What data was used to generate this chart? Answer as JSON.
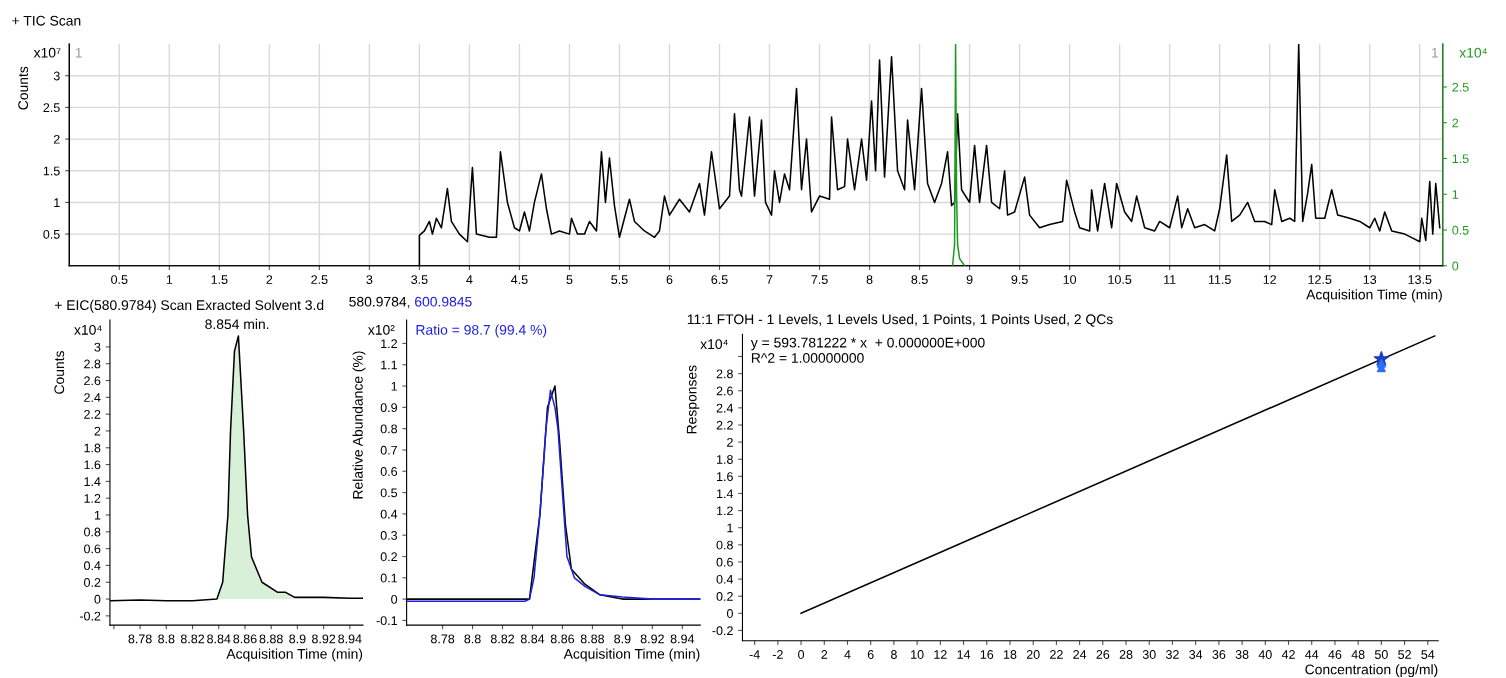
{
  "chart_data": [
    {
      "type": "line",
      "title": "+ TIC Scan",
      "xlabel": "Acquisition Time (min)",
      "ylabel": "Counts",
      "annotations": [
        "x10⁷",
        "x10⁴",
        "1",
        "1"
      ],
      "xlim": [
        0,
        13.73
      ],
      "xticks": [
        0.5,
        1,
        1.5,
        2,
        2.5,
        3,
        3.5,
        4,
        4.5,
        5,
        5.5,
        6,
        6.5,
        7,
        7.5,
        8,
        8.5,
        9,
        9.5,
        10,
        10.5,
        11,
        11.5,
        12,
        12.5,
        13,
        13.5
      ],
      "ylim": [
        0,
        3.5
      ],
      "yticks": [
        0.5,
        1,
        1.5,
        2,
        2.5,
        3
      ],
      "y2lim": [
        0,
        3.1
      ],
      "y2ticks": [
        0,
        0.5,
        1,
        1.5,
        2,
        2.5
      ],
      "grid": true,
      "series": [
        {
          "color": "#000000",
          "x": [
            3.5,
            3.5,
            3.55,
            3.6,
            3.63,
            3.67,
            3.72,
            3.78,
            3.82,
            3.9,
            3.98,
            4.03,
            4.07,
            4.2,
            4.27,
            4.31,
            4.38,
            4.45,
            4.5,
            4.55,
            4.6,
            4.65,
            4.72,
            4.77,
            4.82,
            4.9,
            5.0,
            5.02,
            5.08,
            5.15,
            5.2,
            5.27,
            5.32,
            5.36,
            5.4,
            5.45,
            5.5,
            5.6,
            5.65,
            5.75,
            5.85,
            5.9,
            5.95,
            6.0,
            6.1,
            6.2,
            6.3,
            6.35,
            6.42,
            6.5,
            6.6,
            6.65,
            6.7,
            6.72,
            6.8,
            6.85,
            6.92,
            6.96,
            7.02,
            7.05,
            7.1,
            7.15,
            7.2,
            7.27,
            7.32,
            7.37,
            7.42,
            7.5,
            7.6,
            7.62,
            7.68,
            7.75,
            7.78,
            7.85,
            7.92,
            7.97,
            8.02,
            8.06,
            8.1,
            8.15,
            8.22,
            8.28,
            8.35,
            8.38,
            8.45,
            8.52,
            8.58,
            8.65,
            8.72,
            8.78,
            8.82,
            8.85,
            8.88,
            8.92,
            9.0,
            9.05,
            9.1,
            9.17,
            9.22,
            9.3,
            9.35,
            9.38,
            9.45,
            9.55,
            9.6,
            9.7,
            9.8,
            9.93,
            9.97,
            10.05,
            10.1,
            10.2,
            10.22,
            10.28,
            10.35,
            10.42,
            10.47,
            10.55,
            10.62,
            10.67,
            10.75,
            10.85,
            10.9,
            11.0,
            11.08,
            11.12,
            11.18,
            11.25,
            11.35,
            11.45,
            11.5,
            11.57,
            11.62,
            11.7,
            11.78,
            11.85,
            11.95,
            12.02,
            12.05,
            12.12,
            12.2,
            12.25,
            12.29,
            12.33,
            12.38,
            12.42,
            12.46,
            12.55,
            12.62,
            12.68,
            12.8,
            12.9,
            13.0,
            13.05,
            13.1,
            13.15,
            13.22,
            13.35,
            13.45,
            13.5,
            13.52,
            13.56,
            13.6,
            13.63,
            13.66,
            13.7
          ],
          "values": [
            0,
            0.48,
            0.55,
            0.7,
            0.5,
            0.75,
            0.6,
            1.22,
            0.7,
            0.5,
            0.38,
            1.55,
            0.5,
            0.45,
            0.45,
            1.8,
            1.0,
            0.6,
            0.55,
            0.85,
            0.55,
            1.0,
            1.45,
            0.9,
            0.5,
            0.55,
            0.5,
            0.75,
            0.5,
            0.5,
            0.7,
            0.55,
            1.8,
            1.0,
            1.7,
            0.95,
            0.45,
            1.05,
            0.7,
            0.55,
            0.45,
            0.55,
            1.1,
            0.8,
            1.05,
            0.85,
            1.3,
            0.8,
            1.8,
            0.9,
            1.1,
            2.4,
            1.2,
            1.1,
            2.35,
            1.1,
            2.3,
            1.0,
            0.8,
            1.5,
            1.0,
            1.45,
            1.2,
            2.8,
            1.2,
            2.0,
            0.85,
            1.1,
            1.05,
            2.35,
            1.2,
            1.25,
            2.0,
            1.2,
            2.0,
            1.35,
            2.6,
            1.5,
            3.25,
            1.4,
            3.3,
            1.5,
            1.2,
            2.3,
            1.2,
            2.8,
            1.3,
            1.0,
            1.3,
            1.8,
            0.95,
            1.0,
            2.4,
            1.2,
            1.0,
            1.9,
            1.0,
            1.9,
            1.0,
            0.9,
            1.5,
            0.8,
            0.85,
            1.4,
            0.8,
            0.6,
            0.65,
            0.7,
            1.35,
            0.85,
            0.6,
            0.55,
            1.2,
            0.55,
            1.3,
            0.6,
            1.3,
            0.85,
            0.7,
            1.1,
            0.6,
            0.55,
            0.7,
            0.6,
            1.1,
            0.6,
            0.9,
            0.6,
            0.65,
            0.55,
            0.9,
            1.75,
            0.7,
            0.8,
            1.0,
            0.7,
            0.7,
            0.65,
            1.2,
            0.7,
            0.75,
            0.7,
            3.5,
            0.7,
            1.15,
            1.6,
            0.75,
            0.75,
            1.2,
            0.8,
            0.75,
            0.7,
            0.6,
            0.75,
            0.55,
            0.85,
            0.55,
            0.5,
            0.42,
            0.38,
            0.75,
            0.4,
            1.33,
            0.5,
            1.3,
            0.6
          ]
        },
        {
          "color": "#1f9a1f",
          "axis": "y2",
          "x": [
            8.83,
            8.85,
            8.86,
            8.87,
            8.88,
            8.9,
            8.95
          ],
          "values": [
            0,
            0.3,
            3.1,
            1.0,
            0.3,
            0.1,
            0
          ]
        }
      ]
    },
    {
      "type": "line",
      "title": "+ EIC(580.9784) Scan Exracted Solvent 3.d",
      "xlabel": "Acquisition Time (min)",
      "ylabel": "Counts",
      "annotations": [
        "x10⁴",
        {
          "text": "8.854 min.",
          "x": 8.854,
          "y": 3.13
        }
      ],
      "xlim": [
        8.757,
        8.95
      ],
      "xticks": [
        {
          "value": 8.76,
          "label": null
        },
        8.78,
        8.8,
        8.82,
        8.84,
        8.86,
        8.88,
        8.9,
        8.92,
        8.94
      ],
      "ylim": [
        -0.31,
        3.32
      ],
      "yticks": [
        -0.2,
        0,
        0.2,
        0.4,
        0.6,
        0.8,
        1,
        1.2,
        1.4,
        1.6,
        1.8,
        2,
        2.2,
        2.4,
        2.6,
        2.8,
        3
      ],
      "series": [
        {
          "type": "area",
          "color": "#d8f0d8",
          "x": [
            8.8386,
            8.843,
            8.847,
            8.849,
            8.852,
            8.855,
            8.859,
            8.862,
            8.865,
            8.873,
            8.885,
            8.891,
            8.898
          ],
          "values": [
            0.0,
            0.2,
            1.0,
            2.0,
            2.95,
            3.13,
            2.0,
            1.0,
            0.5,
            0.2,
            0.08,
            0.08,
            0.02
          ]
        },
        {
          "color": "#000000",
          "x": [
            8.757,
            8.78,
            8.8,
            8.82,
            8.8386,
            8.843,
            8.847,
            8.849,
            8.852,
            8.855,
            8.859,
            8.862,
            8.865,
            8.873,
            8.885,
            8.891,
            8.898,
            8.908,
            8.92,
            8.94,
            8.95
          ],
          "values": [
            -0.02,
            -0.01,
            -0.02,
            -0.02,
            0.0,
            0.2,
            1.0,
            2.0,
            2.95,
            3.13,
            2.0,
            1.0,
            0.5,
            0.2,
            0.08,
            0.08,
            0.02,
            0.02,
            0.02,
            0.01,
            0.01
          ]
        }
      ]
    },
    {
      "type": "line",
      "xlabel": "Acquisition Time (min)",
      "ylabel": "Relative Abundance (%)",
      "annotations": [
        "x10²",
        "Ratio = 98.7 (99.4 %)"
      ],
      "xlim": [
        8.756,
        8.952
      ],
      "xticks": [
        8.78,
        8.8,
        8.82,
        8.84,
        8.86,
        8.88,
        8.9,
        8.92,
        8.94
      ],
      "ylim": [
        -0.122,
        1.31
      ],
      "yticks": [
        -0.1,
        0,
        0.1,
        0.2,
        0.3,
        0.4,
        0.5,
        0.6,
        0.7,
        0.8,
        0.9,
        1,
        1.1,
        1.2
      ],
      "series": [
        {
          "name": "580.9784",
          "color": "#000000",
          "x": [
            8.756,
            8.8,
            8.838,
            8.845,
            8.85,
            8.855,
            8.858,
            8.862,
            8.866,
            8.875,
            8.885,
            8.9,
            8.952
          ],
          "values": [
            0.0,
            0.0,
            0.0,
            0.4,
            0.9,
            1.0,
            0.75,
            0.35,
            0.14,
            0.07,
            0.02,
            0.0,
            0.0
          ]
        },
        {
          "name": ", 600.9845",
          "color": "#1f1fe0",
          "x": [
            8.756,
            8.835,
            8.838,
            8.841,
            8.845,
            8.849,
            8.852,
            8.855,
            8.857,
            8.86,
            8.863,
            8.868,
            8.875,
            8.885,
            8.9,
            8.92,
            8.952
          ],
          "values": [
            -0.01,
            -0.01,
            0.0,
            0.1,
            0.4,
            0.8,
            0.98,
            0.9,
            0.8,
            0.5,
            0.2,
            0.1,
            0.06,
            0.02,
            0.01,
            0.0,
            0.0
          ]
        }
      ]
    },
    {
      "type": "line",
      "title": "11:1 FTOH - 1 Levels, 1 Levels Used, 1 Points, 1 Points Used, 2 QCs",
      "xlabel": "Concentration (pg/ml)",
      "ylabel": "Responses",
      "annotations": [
        "y = 593.781222 * x  + 0.000000E+000",
        "R^2 = 1.00000000",
        "x10⁴"
      ],
      "xlim": [
        -5.05,
        54.9
      ],
      "xticks": [
        -4,
        -2,
        0,
        2,
        4,
        6,
        8,
        10,
        12,
        14,
        16,
        18,
        20,
        22,
        24,
        26,
        28,
        30,
        32,
        34,
        36,
        38,
        40,
        42,
        44,
        46,
        48,
        50,
        52,
        54
      ],
      "ylim": [
        -0.32,
        3.26
      ],
      "yticks": [
        -0.2,
        0,
        0.2,
        0.4,
        0.6,
        0.8,
        1,
        1.2,
        1.4,
        1.6,
        1.8,
        2,
        2.2,
        2.4,
        2.6,
        2.8,
        {
          "value": 3.0,
          "label": null
        }
      ],
      "series": [
        {
          "color": "#000000",
          "x": [
            0,
            54.6
          ],
          "values": [
            0,
            3.24
          ]
        },
        {
          "type": "scatter",
          "marker": "star",
          "color": "#1a3fbf",
          "x": [
            50
          ],
          "values": [
            2.97
          ]
        },
        {
          "type": "scatter",
          "marker": "triangle",
          "color": "#2a6fff",
          "x": [
            50,
            50
          ],
          "values": [
            2.92,
            2.87
          ]
        }
      ]
    }
  ]
}
